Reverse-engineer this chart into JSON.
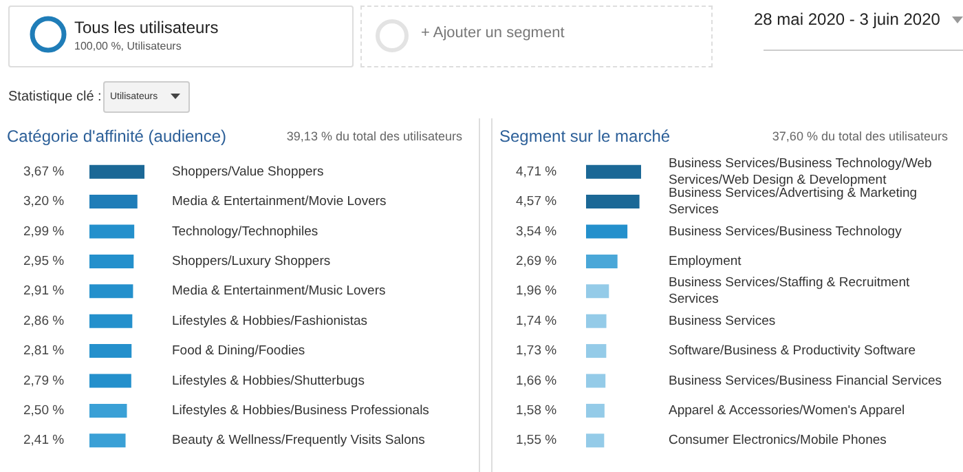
{
  "chart_data": [
    {
      "type": "other",
      "annotations": [
        "Tous les utilisateurs",
        "100,00 %, Utilisateurs",
        "+ Ajouter un segment",
        "28 mai 2020 - 3 juin 2020",
        "Statistique clé :",
        "Utilisateurs"
      ]
    },
    {
      "type": "bar",
      "orientation": "horizontal",
      "title": "Catégorie d'affinité (audience)",
      "subtitle": "39,13 % du total des utilisateurs",
      "categories": [
        "Shoppers/Value Shoppers",
        "Media & Entertainment/Movie Lovers",
        "Technology/Technophiles",
        "Shoppers/Luxury Shoppers",
        "Media & Entertainment/Music Lovers",
        "Lifestyles & Hobbies/Fashionistas",
        "Food & Dining/Foodies",
        "Lifestyles & Hobbies/Shutterbugs",
        "Lifestyles & Hobbies/Business Professionals",
        "Beauty & Wellness/Frequently Visits Salons"
      ],
      "values": [
        3.67,
        3.2,
        2.99,
        2.95,
        2.91,
        2.86,
        2.81,
        2.79,
        2.5,
        2.41
      ],
      "value_labels": [
        "3,67 %",
        "3,20 %",
        "2,99 %",
        "2,95 %",
        "2,91 %",
        "2,86 %",
        "2,81 %",
        "2,79 %",
        "2,50 %",
        "2,41 %"
      ],
      "colors": [
        "#1b6896",
        "#1f7db8",
        "#2490cc",
        "#2490cc",
        "#2490cc",
        "#2490cc",
        "#2490cc",
        "#2490cc",
        "#3aa0d6",
        "#3aa0d6"
      ]
    },
    {
      "type": "bar",
      "orientation": "horizontal",
      "title": "Segment sur le marché",
      "subtitle": "37,60 % du total des utilisateurs",
      "categories": [
        "Business Services/Business Technology/Web Services/Web Design & Development",
        "Business Services/Advertising & Marketing Services",
        "Business Services/Business Technology",
        "Employment",
        "Business Services/Staffing & Recruitment Services",
        "Business Services",
        "Software/Business & Productivity Software",
        "Business Services/Business Financial Services",
        "Apparel & Accessories/Women's Apparel",
        "Consumer Electronics/Mobile Phones"
      ],
      "values": [
        4.71,
        4.57,
        3.54,
        2.69,
        1.96,
        1.74,
        1.73,
        1.66,
        1.58,
        1.55
      ],
      "value_labels": [
        "4,71 %",
        "4,57 %",
        "3,54 %",
        "2,69 %",
        "1,96 %",
        "1,74 %",
        "1,73 %",
        "1,66 %",
        "1,58 %",
        "1,55 %"
      ],
      "colors": [
        "#1b6896",
        "#1b6896",
        "#2490cc",
        "#4aa7d8",
        "#94cbe8",
        "#94cbe8",
        "#94cbe8",
        "#94cbe8",
        "#94cbe8",
        "#94cbe8"
      ]
    }
  ]
}
